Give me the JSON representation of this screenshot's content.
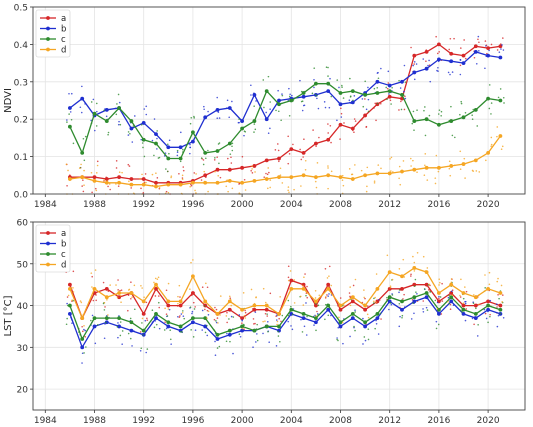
{
  "chart_data": [
    {
      "type": "line",
      "ylabel": "NDVI",
      "xlim": [
        1983,
        2023
      ],
      "ylim": [
        0,
        0.5
      ],
      "xticks": [
        "1984",
        "1988",
        "1992",
        "1996",
        "2000",
        "2004",
        "2008",
        "2012",
        "2016",
        "2020"
      ],
      "yticks": [
        "0.0",
        "0.1",
        "0.2",
        "0.3",
        "0.4",
        "0.5"
      ],
      "grid": true,
      "legend_position": "top-left",
      "colors": {
        "a": "#d62728",
        "b": "#1f2fd0",
        "c": "#2e8b2e",
        "d": "#f5a623"
      },
      "x": [
        1986,
        1987,
        1988,
        1989,
        1990,
        1991,
        1992,
        1993,
        1994,
        1995,
        1996,
        1997,
        1998,
        1999,
        2000,
        2001,
        2002,
        2003,
        2004,
        2005,
        2006,
        2007,
        2008,
        2009,
        2010,
        2011,
        2012,
        2013,
        2014,
        2015,
        2016,
        2017,
        2018,
        2019,
        2020,
        2021
      ],
      "series": [
        {
          "name": "a",
          "values": [
            0.045,
            0.045,
            0.045,
            0.04,
            0.045,
            0.04,
            0.04,
            0.03,
            0.03,
            0.03,
            0.035,
            0.05,
            0.065,
            0.065,
            0.07,
            0.075,
            0.09,
            0.095,
            0.12,
            0.11,
            0.135,
            0.145,
            0.185,
            0.175,
            0.21,
            0.24,
            0.26,
            0.255,
            0.37,
            0.38,
            0.4,
            0.375,
            0.37,
            0.395,
            0.39,
            0.395
          ]
        },
        {
          "name": "b",
          "values": [
            0.23,
            0.255,
            0.21,
            0.225,
            0.23,
            0.175,
            0.19,
            0.16,
            0.125,
            0.125,
            0.14,
            0.205,
            0.225,
            0.23,
            0.195,
            0.265,
            0.2,
            0.25,
            0.255,
            0.26,
            0.265,
            0.275,
            0.24,
            0.245,
            0.27,
            0.3,
            0.29,
            0.3,
            0.325,
            0.335,
            0.36,
            0.355,
            0.35,
            0.38,
            0.37,
            0.365
          ]
        },
        {
          "name": "c",
          "values": [
            0.18,
            0.11,
            0.215,
            0.195,
            0.23,
            0.195,
            0.145,
            0.135,
            0.095,
            0.095,
            0.165,
            0.11,
            0.115,
            0.135,
            0.175,
            0.195,
            0.275,
            0.24,
            0.25,
            0.27,
            0.295,
            0.295,
            0.27,
            0.275,
            0.265,
            0.27,
            0.275,
            0.265,
            0.195,
            0.2,
            0.185,
            0.195,
            0.205,
            0.225,
            0.255,
            0.25
          ]
        },
        {
          "name": "d",
          "values": [
            0.04,
            0.045,
            0.035,
            0.03,
            0.03,
            0.025,
            0.025,
            0.02,
            0.025,
            0.025,
            0.03,
            0.03,
            0.03,
            0.035,
            0.03,
            0.035,
            0.04,
            0.045,
            0.045,
            0.05,
            0.045,
            0.05,
            0.045,
            0.04,
            0.05,
            0.055,
            0.055,
            0.06,
            0.065,
            0.07,
            0.07,
            0.075,
            0.08,
            0.09,
            0.11,
            0.155
          ]
        }
      ]
    },
    {
      "type": "line",
      "ylabel": "LST [°C]",
      "xlim": [
        1983,
        2023
      ],
      "ylim": [
        15,
        60
      ],
      "xticks": [
        "1984",
        "1988",
        "1992",
        "1996",
        "2000",
        "2004",
        "2008",
        "2012",
        "2016",
        "2020"
      ],
      "yticks": [
        "20",
        "30",
        "40",
        "50",
        "60"
      ],
      "grid": true,
      "legend_position": "top-left",
      "colors": {
        "a": "#d62728",
        "b": "#1f2fd0",
        "c": "#2e8b2e",
        "d": "#f5a623"
      },
      "x": [
        1986,
        1987,
        1988,
        1989,
        1990,
        1991,
        1992,
        1993,
        1994,
        1995,
        1996,
        1997,
        1998,
        1999,
        2000,
        2001,
        2002,
        2003,
        2004,
        2005,
        2006,
        2007,
        2008,
        2009,
        2010,
        2011,
        2012,
        2013,
        2014,
        2015,
        2016,
        2017,
        2018,
        2019,
        2020,
        2021
      ],
      "series": [
        {
          "name": "a",
          "values": [
            45,
            37,
            43,
            44,
            42,
            43,
            38,
            44,
            40,
            40,
            43,
            40,
            38,
            39,
            37,
            39,
            39,
            38,
            46,
            45,
            40,
            45,
            39,
            41,
            39,
            41,
            44,
            44,
            45,
            45,
            41,
            43,
            40,
            40,
            41,
            40
          ]
        },
        {
          "name": "b",
          "values": [
            38,
            30,
            35,
            36,
            35,
            34,
            33,
            37,
            35,
            34,
            36,
            35,
            32,
            33,
            34,
            34,
            35,
            34,
            38,
            37,
            36,
            39,
            35,
            37,
            35,
            37,
            41,
            39,
            41,
            42,
            38,
            41,
            38,
            37,
            39,
            38
          ]
        },
        {
          "name": "c",
          "values": [
            40,
            32,
            37,
            37,
            37,
            36,
            34,
            38,
            36,
            35,
            37,
            37,
            33,
            34,
            35,
            34,
            35,
            35,
            39,
            38,
            37,
            40,
            36,
            38,
            36,
            38,
            42,
            41,
            42,
            43,
            39,
            42,
            39,
            38,
            40,
            39
          ]
        },
        {
          "name": "d",
          "values": [
            44,
            37,
            44,
            42,
            43,
            43,
            41,
            45,
            41,
            41,
            47,
            41,
            38,
            41,
            39,
            40,
            40,
            38,
            44,
            44,
            41,
            44,
            40,
            42,
            40,
            44,
            48,
            47,
            49,
            48,
            43,
            45,
            43,
            42,
            44,
            43
          ]
        }
      ]
    }
  ]
}
